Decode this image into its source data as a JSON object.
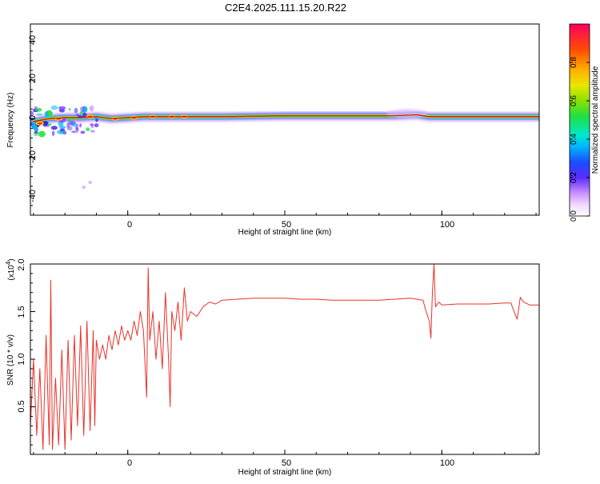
{
  "page": {
    "title": "C2E4.2025.111.15.20.R22"
  },
  "colors": {
    "snr_line": "#e8322a",
    "spec_band_core": "#d81818",
    "frame": "#000000"
  },
  "chart_data": [
    {
      "type": "heatmap",
      "title": "C2E4.2025.111.15.20.R22",
      "xlabel": "Height of straight line (km)",
      "ylabel": "Frequency (Hz)",
      "xlim": [
        -31,
        131
      ],
      "ylim": [
        -50,
        49
      ],
      "xticks": [
        "0",
        "50",
        "100"
      ],
      "yticks": [
        "40",
        "20",
        "0",
        "-20",
        "-40"
      ],
      "grid": false,
      "ridge": [
        {
          "x": -30,
          "f": -1.5
        },
        {
          "x": -25,
          "f": 0
        },
        {
          "x": -20,
          "f": 0.5
        },
        {
          "x": -15,
          "f": 0.5
        },
        {
          "x": -10,
          "f": 1
        },
        {
          "x": -5,
          "f": 0
        },
        {
          "x": 0,
          "f": 0.5
        },
        {
          "x": 5,
          "f": 1
        },
        {
          "x": 10,
          "f": 1
        },
        {
          "x": 20,
          "f": 1
        },
        {
          "x": 30,
          "f": 1
        },
        {
          "x": 50,
          "f": 1.5
        },
        {
          "x": 70,
          "f": 1.5
        },
        {
          "x": 85,
          "f": 1.5
        },
        {
          "x": 92,
          "f": 2
        },
        {
          "x": 96,
          "f": 1
        },
        {
          "x": 110,
          "f": 1
        },
        {
          "x": 120,
          "f": 1
        },
        {
          "x": 131,
          "f": 1
        }
      ],
      "colorbar": {
        "label": "Normalized spectral amplitude",
        "range": [
          0.0,
          1.0
        ],
        "ticks": [
          "0.0",
          "0.2",
          "0.4",
          "0.6",
          "0.8"
        ]
      }
    },
    {
      "type": "line",
      "xlabel": "Height of straight line (km)",
      "ylabel": "SNR (10 * v/v)",
      "scale_note": "(x10",
      "scale_exp": "4",
      "scale_close": ")",
      "xlim": [
        -31,
        131
      ],
      "ylim": [
        0.0,
        2.0
      ],
      "xticks": [
        "0",
        "50",
        "100"
      ],
      "yticks": [
        "0.5",
        "1.0",
        "1.5",
        "2.0"
      ],
      "grid": false,
      "series": [
        {
          "values": [
            {
              "x": -31,
              "y": 0.3
            },
            {
              "x": -30,
              "y": 1.0
            },
            {
              "x": -29,
              "y": 0.2
            },
            {
              "x": -28,
              "y": 0.9
            },
            {
              "x": -27,
              "y": 0.05
            },
            {
              "x": -26,
              "y": 1.25
            },
            {
              "x": -25,
              "y": 0.1
            },
            {
              "x": -24.5,
              "y": 1.83
            },
            {
              "x": -24,
              "y": 0.05
            },
            {
              "x": -23,
              "y": 0.8
            },
            {
              "x": -22,
              "y": 0.1
            },
            {
              "x": -21,
              "y": 1.1
            },
            {
              "x": -20,
              "y": 0.05
            },
            {
              "x": -19,
              "y": 1.2
            },
            {
              "x": -18,
              "y": 0.15
            },
            {
              "x": -17,
              "y": 1.25
            },
            {
              "x": -16,
              "y": 0.3
            },
            {
              "x": -15,
              "y": 1.35
            },
            {
              "x": -14,
              "y": 0.2
            },
            {
              "x": -13,
              "y": 1.4
            },
            {
              "x": -12,
              "y": 0.25
            },
            {
              "x": -11,
              "y": 1.3
            },
            {
              "x": -10.5,
              "y": 0.3
            },
            {
              "x": -10,
              "y": 1.2
            },
            {
              "x": -9,
              "y": 1.0
            },
            {
              "x": -8,
              "y": 1.15
            },
            {
              "x": -7,
              "y": 1.0
            },
            {
              "x": -6,
              "y": 1.25
            },
            {
              "x": -5,
              "y": 1.1
            },
            {
              "x": -4,
              "y": 1.3
            },
            {
              "x": -3,
              "y": 1.15
            },
            {
              "x": -2,
              "y": 1.35
            },
            {
              "x": -1,
              "y": 1.2
            },
            {
              "x": 0,
              "y": 1.3
            },
            {
              "x": 1,
              "y": 1.2
            },
            {
              "x": 2,
              "y": 1.4
            },
            {
              "x": 3,
              "y": 1.25
            },
            {
              "x": 4,
              "y": 1.5
            },
            {
              "x": 5,
              "y": 1.3
            },
            {
              "x": 6,
              "y": 0.6
            },
            {
              "x": 6.5,
              "y": 1.96
            },
            {
              "x": 7,
              "y": 1.2
            },
            {
              "x": 8,
              "y": 1.5
            },
            {
              "x": 9,
              "y": 1.0
            },
            {
              "x": 10,
              "y": 1.4
            },
            {
              "x": 11,
              "y": 0.9
            },
            {
              "x": 12,
              "y": 1.7
            },
            {
              "x": 13,
              "y": 1.0
            },
            {
              "x": 13.5,
              "y": 0.5
            },
            {
              "x": 14,
              "y": 1.5
            },
            {
              "x": 15,
              "y": 1.3
            },
            {
              "x": 16,
              "y": 1.6
            },
            {
              "x": 17,
              "y": 1.2
            },
            {
              "x": 18,
              "y": 1.75
            },
            {
              "x": 19,
              "y": 1.4
            },
            {
              "x": 20,
              "y": 1.5
            },
            {
              "x": 22,
              "y": 1.45
            },
            {
              "x": 24,
              "y": 1.55
            },
            {
              "x": 26,
              "y": 1.6
            },
            {
              "x": 28,
              "y": 1.58
            },
            {
              "x": 30,
              "y": 1.62
            },
            {
              "x": 35,
              "y": 1.63
            },
            {
              "x": 40,
              "y": 1.64
            },
            {
              "x": 45,
              "y": 1.64
            },
            {
              "x": 50,
              "y": 1.64
            },
            {
              "x": 55,
              "y": 1.63
            },
            {
              "x": 60,
              "y": 1.63
            },
            {
              "x": 65,
              "y": 1.62
            },
            {
              "x": 70,
              "y": 1.62
            },
            {
              "x": 75,
              "y": 1.62
            },
            {
              "x": 80,
              "y": 1.62
            },
            {
              "x": 85,
              "y": 1.63
            },
            {
              "x": 90,
              "y": 1.64
            },
            {
              "x": 94,
              "y": 1.62
            },
            {
              "x": 95,
              "y": 1.5
            },
            {
              "x": 96,
              "y": 1.4
            },
            {
              "x": 96.5,
              "y": 1.22
            },
            {
              "x": 97,
              "y": 1.7
            },
            {
              "x": 97.5,
              "y": 2.0
            },
            {
              "x": 98,
              "y": 1.55
            },
            {
              "x": 99,
              "y": 1.6
            },
            {
              "x": 100,
              "y": 1.57
            },
            {
              "x": 105,
              "y": 1.58
            },
            {
              "x": 110,
              "y": 1.58
            },
            {
              "x": 115,
              "y": 1.58
            },
            {
              "x": 120,
              "y": 1.59
            },
            {
              "x": 122,
              "y": 1.59
            },
            {
              "x": 123,
              "y": 1.5
            },
            {
              "x": 124,
              "y": 1.42
            },
            {
              "x": 125,
              "y": 1.65
            },
            {
              "x": 126,
              "y": 1.6
            },
            {
              "x": 128,
              "y": 1.57
            },
            {
              "x": 131,
              "y": 1.57
            }
          ]
        }
      ]
    }
  ]
}
